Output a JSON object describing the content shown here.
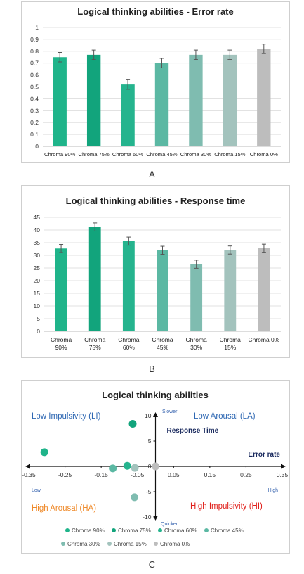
{
  "panel_labels": [
    "A",
    "B",
    "C"
  ],
  "chart_data": [
    {
      "type": "bar",
      "title": "Logical thinking abilities - Error rate",
      "categories": [
        "Chroma 90%",
        "Chroma 75%",
        "Chroma 60%",
        "Chroma 45%",
        "Chroma 30%",
        "Chroma 15%",
        "Chroma 0%"
      ],
      "values": [
        0.75,
        0.77,
        0.52,
        0.7,
        0.77,
        0.77,
        0.82
      ],
      "errors": [
        0.04,
        0.04,
        0.04,
        0.04,
        0.04,
        0.04,
        0.04
      ],
      "ylim": [
        0,
        1
      ],
      "yticks": [
        "0",
        "0.1",
        "0.2",
        "0.3",
        "0.4",
        "0.5",
        "0.6",
        "0.7",
        "0.8",
        "0.9",
        "1"
      ],
      "grid": true,
      "xlabel": "",
      "ylabel": ""
    },
    {
      "type": "bar",
      "title": "Logical thinking abilities - Response time",
      "categories": [
        "Chroma 90%",
        "Chroma 75%",
        "Chroma 60%",
        "Chroma 45%",
        "Chroma 30%",
        "Chroma 15%",
        "Chroma 0%"
      ],
      "values": [
        32.7,
        41.2,
        35.6,
        32.0,
        26.5,
        32.1,
        32.8
      ],
      "errors": [
        1.6,
        1.6,
        1.6,
        1.6,
        1.6,
        1.6,
        1.6
      ],
      "ylim": [
        0,
        45
      ],
      "yticks": [
        "0",
        "5",
        "10",
        "15",
        "20",
        "25",
        "30",
        "35",
        "40",
        "45"
      ],
      "grid": true,
      "xlabel": "",
      "ylabel": ""
    },
    {
      "type": "scatter",
      "title": "Logical thinking abilities",
      "xlim": [
        -0.35,
        0.35
      ],
      "ylim": [
        -10,
        10
      ],
      "xticks": [
        "-0.35",
        "-0.25",
        "-0.15",
        "-0.05",
        "0.05",
        "0.15",
        "0.25",
        "0.35"
      ],
      "yticks": [
        "10",
        "5",
        "0",
        "-5",
        "-10"
      ],
      "axis_titles": {
        "x": "Error rate",
        "y": "Response Time"
      },
      "axis_ends": {
        "top": "Slower",
        "bottom": "Quicker",
        "left": "Low",
        "right": "High"
      },
      "quadrants": {
        "top_left": "Low Impulsivity (LI)",
        "top_right": "Low Arousal (LA)",
        "bottom_left": "High Arousal (HA)",
        "bottom_right": "High Impulsivity (HI)"
      },
      "series": [
        {
          "name": "Chroma 90%",
          "x": -0.307,
          "y": 2.8
        },
        {
          "name": "Chroma 75%",
          "x": -0.063,
          "y": 8.4
        },
        {
          "name": "Chroma 60%",
          "x": -0.078,
          "y": 0.1
        },
        {
          "name": "Chroma 45%",
          "x": -0.118,
          "y": -0.4
        },
        {
          "name": "Chroma 30%",
          "x": -0.058,
          "y": -6.1
        },
        {
          "name": "Chroma 15%",
          "x": -0.057,
          "y": -0.3
        },
        {
          "name": "Chroma 0%",
          "x": 0.0,
          "y": 0.0
        }
      ],
      "legend_position": "bottom"
    }
  ],
  "colors": {
    "bars": [
      "#1fb48a",
      "#12a47c",
      "#25b48e",
      "#5bb8a3",
      "#7fbcb0",
      "#a3c3bd",
      "#bdbdbd"
    ],
    "errorbar": "#555555",
    "grid": "#d9d9d9",
    "axis": "#111111",
    "title": "#222222",
    "quadrant_blue": "#2f68b3",
    "quadrant_orange": "#ef8a2a",
    "quadrant_red": "#e0201b",
    "axis_title": "#1a2a5e",
    "end_label": "#3a66b0"
  }
}
